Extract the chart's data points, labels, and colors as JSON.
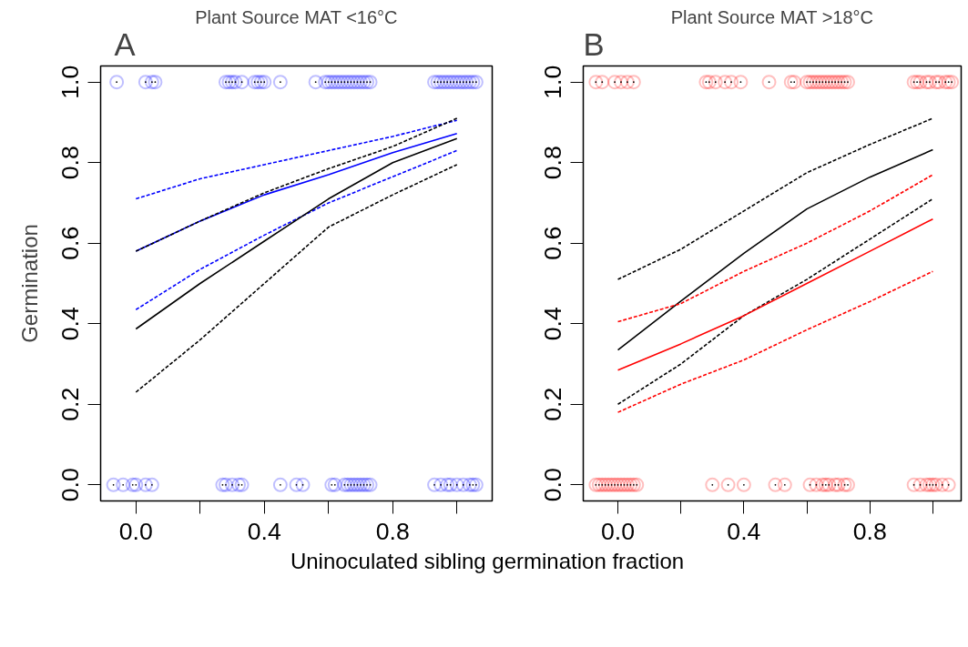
{
  "chart_data": [
    {
      "type": "line",
      "title": "Plant Source MAT <16°C",
      "annotations": [
        "A"
      ],
      "ylabel": "Germination",
      "xlabel": "Uninoculated sibling germination fraction",
      "xlim": [
        -0.11,
        1.11
      ],
      "ylim": [
        -0.04,
        1.04
      ],
      "xticks": [
        {
          "value": 0,
          "label": "0.0"
        },
        {
          "value": 0.2,
          "label": null
        },
        {
          "value": 0.4,
          "label": "0.4"
        },
        {
          "value": 0.6,
          "label": null
        },
        {
          "value": 0.8,
          "label": "0.8"
        },
        {
          "value": 1.0,
          "label": null
        }
      ],
      "yticks": [
        {
          "value": 0,
          "label": "0.0"
        },
        {
          "value": 0.2,
          "label": "0.2"
        },
        {
          "value": 0.4,
          "label": "0.4"
        },
        {
          "value": 0.6,
          "label": "0.6"
        },
        {
          "value": 0.8,
          "label": "0.8"
        },
        {
          "value": 1,
          "label": "1.0"
        }
      ],
      "grid": false,
      "series": [
        {
          "type": "scatter",
          "marker": "circle",
          "color": "#0000ff",
          "x": [
            -0.06,
            0.03,
            0.05,
            0.06,
            0.28,
            0.29,
            0.3,
            0.31,
            0.33,
            0.37,
            0.38,
            0.39,
            0.4,
            0.45,
            0.56,
            0.59,
            0.6,
            0.61,
            0.62,
            0.63,
            0.64,
            0.65,
            0.66,
            0.67,
            0.68,
            0.69,
            0.7,
            0.71,
            0.72,
            0.73,
            0.93,
            0.94,
            0.95,
            0.96,
            0.97,
            0.98,
            0.99,
            1.0,
            1.01,
            1.02,
            1.03,
            1.04,
            1.05,
            1.06,
            -0.07,
            -0.04,
            -0.01,
            0.0,
            0.03,
            0.05,
            0.27,
            0.28,
            0.3,
            0.32,
            0.33,
            0.45,
            0.5,
            0.52,
            0.61,
            0.62,
            0.65,
            0.66,
            0.67,
            0.68,
            0.69,
            0.7,
            0.71,
            0.72,
            0.73,
            0.93,
            0.95,
            0.97,
            0.98,
            1.0,
            1.02,
            1.04,
            1.05,
            1.06
          ],
          "values": [
            1,
            1,
            1,
            1,
            1,
            1,
            1,
            1,
            1,
            1,
            1,
            1,
            1,
            1,
            1,
            1,
            1,
            1,
            1,
            1,
            1,
            1,
            1,
            1,
            1,
            1,
            1,
            1,
            1,
            1,
            1,
            1,
            1,
            1,
            1,
            1,
            1,
            1,
            1,
            1,
            1,
            1,
            1,
            1,
            0,
            0,
            0,
            0,
            0,
            0,
            0,
            0,
            0,
            0,
            0,
            0,
            0,
            0,
            0,
            0,
            0,
            0,
            0,
            0,
            0,
            0,
            0,
            0,
            0,
            0,
            0,
            0,
            0,
            0,
            0,
            0,
            0,
            0
          ]
        },
        {
          "line_style": "solid",
          "color": "#0000ff",
          "x": [
            0,
            0.2,
            0.4,
            0.6,
            0.8,
            1.0
          ],
          "values": [
            0.58,
            0.655,
            0.72,
            0.77,
            0.825,
            0.872
          ]
        },
        {
          "line_style": "dashed",
          "color": "#0000ff",
          "x": [
            0,
            0.2,
            0.4,
            0.6,
            0.8,
            1.0
          ],
          "values": [
            0.71,
            0.76,
            0.795,
            0.83,
            0.865,
            0.905
          ]
        },
        {
          "line_style": "dashed",
          "color": "#0000ff",
          "x": [
            0,
            0.2,
            0.4,
            0.6,
            0.8,
            1.0
          ],
          "values": [
            0.435,
            0.535,
            0.62,
            0.7,
            0.765,
            0.83
          ]
        },
        {
          "line_style": "solid",
          "color": "#000000",
          "x": [
            0,
            0.2,
            0.4,
            0.6,
            0.8,
            1.0
          ],
          "values": [
            0.387,
            0.5,
            0.605,
            0.71,
            0.8,
            0.86
          ]
        },
        {
          "line_style": "dashed",
          "color": "#000000",
          "x": [
            0,
            0.2,
            0.4,
            0.6,
            0.8,
            1.0
          ],
          "values": [
            0.58,
            0.655,
            0.725,
            0.785,
            0.84,
            0.91
          ]
        },
        {
          "line_style": "dashed",
          "color": "#000000",
          "x": [
            0,
            0.2,
            0.4,
            0.6,
            0.8,
            1.0
          ],
          "values": [
            0.23,
            0.36,
            0.5,
            0.64,
            0.72,
            0.795
          ]
        }
      ]
    },
    {
      "type": "line",
      "title": "Plant Source MAT >18°C",
      "annotations": [
        "B"
      ],
      "xlim": [
        -0.11,
        1.09
      ],
      "ylim": [
        -0.04,
        1.04
      ],
      "xticks": [
        {
          "value": 0,
          "label": "0.0"
        },
        {
          "value": 0.2,
          "label": null
        },
        {
          "value": 0.4,
          "label": "0.4"
        },
        {
          "value": 0.6,
          "label": null
        },
        {
          "value": 0.8,
          "label": "0.8"
        },
        {
          "value": 1.0,
          "label": null
        }
      ],
      "yticks": [
        {
          "value": 0,
          "label": "0.0"
        },
        {
          "value": 0.2,
          "label": "0.2"
        },
        {
          "value": 0.4,
          "label": "0.4"
        },
        {
          "value": 0.6,
          "label": "0.6"
        },
        {
          "value": 0.8,
          "label": "0.8"
        },
        {
          "value": 1,
          "label": "1.0"
        }
      ],
      "grid": false,
      "series": [
        {
          "type": "scatter",
          "marker": "circle",
          "color": "#ff0000",
          "x": [
            -0.07,
            -0.05,
            -0.01,
            0.01,
            0.03,
            0.05,
            0.28,
            0.29,
            0.31,
            0.34,
            0.36,
            0.39,
            0.48,
            0.55,
            0.56,
            0.6,
            0.61,
            0.62,
            0.63,
            0.64,
            0.65,
            0.66,
            0.67,
            0.68,
            0.69,
            0.7,
            0.71,
            0.72,
            0.73,
            0.94,
            0.95,
            0.96,
            0.98,
            0.99,
            1.01,
            1.02,
            1.04,
            1.05,
            1.06,
            -0.07,
            -0.06,
            -0.05,
            -0.04,
            -0.03,
            -0.02,
            -0.01,
            0.0,
            0.01,
            0.02,
            0.03,
            0.04,
            0.05,
            0.06,
            0.3,
            0.35,
            0.4,
            0.5,
            0.53,
            0.61,
            0.63,
            0.65,
            0.66,
            0.67,
            0.69,
            0.7,
            0.72,
            0.73,
            0.94,
            0.96,
            0.98,
            0.99,
            1.0,
            1.01,
            1.03,
            1.05
          ],
          "values": [
            1,
            1,
            1,
            1,
            1,
            1,
            1,
            1,
            1,
            1,
            1,
            1,
            1,
            1,
            1,
            1,
            1,
            1,
            1,
            1,
            1,
            1,
            1,
            1,
            1,
            1,
            1,
            1,
            1,
            1,
            1,
            1,
            1,
            1,
            1,
            1,
            1,
            1,
            1,
            0,
            0,
            0,
            0,
            0,
            0,
            0,
            0,
            0,
            0,
            0,
            0,
            0,
            0,
            0,
            0,
            0,
            0,
            0,
            0,
            0,
            0,
            0,
            0,
            0,
            0,
            0,
            0,
            0,
            0,
            0,
            0,
            0,
            0,
            0,
            0
          ]
        },
        {
          "line_style": "solid",
          "color": "#000000",
          "x": [
            0,
            0.2,
            0.4,
            0.6,
            0.8,
            1.0
          ],
          "values": [
            0.335,
            0.456,
            0.575,
            0.685,
            0.764,
            0.832
          ]
        },
        {
          "line_style": "dashed",
          "color": "#000000",
          "x": [
            0,
            0.2,
            0.4,
            0.6,
            0.8,
            1.0
          ],
          "values": [
            0.51,
            0.585,
            0.68,
            0.775,
            0.845,
            0.91
          ]
        },
        {
          "line_style": "dashed",
          "color": "#000000",
          "x": [
            0,
            0.2,
            0.4,
            0.6,
            0.8,
            1.0
          ],
          "values": [
            0.2,
            0.3,
            0.42,
            0.51,
            0.61,
            0.71
          ]
        },
        {
          "line_style": "solid",
          "color": "#ff0000",
          "x": [
            0,
            0.2,
            0.4,
            0.6,
            0.8,
            1.0
          ],
          "values": [
            0.285,
            0.35,
            0.42,
            0.5,
            0.58,
            0.66
          ]
        },
        {
          "line_style": "dashed",
          "color": "#ff0000",
          "x": [
            0,
            0.2,
            0.4,
            0.6,
            0.8,
            1.0
          ],
          "values": [
            0.405,
            0.45,
            0.53,
            0.6,
            0.68,
            0.77
          ]
        },
        {
          "line_style": "dashed",
          "color": "#ff0000",
          "x": [
            0,
            0.2,
            0.4,
            0.6,
            0.8,
            1.0
          ],
          "values": [
            0.18,
            0.25,
            0.31,
            0.385,
            0.455,
            0.53
          ]
        }
      ]
    }
  ]
}
